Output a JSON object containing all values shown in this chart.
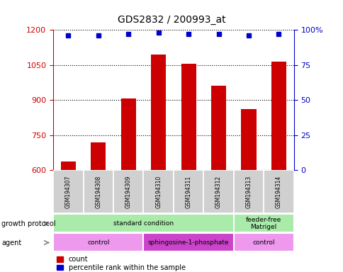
{
  "title": "GDS2832 / 200993_at",
  "samples": [
    "GSM194307",
    "GSM194308",
    "GSM194309",
    "GSM194310",
    "GSM194311",
    "GSM194312",
    "GSM194313",
    "GSM194314"
  ],
  "counts": [
    635,
    718,
    905,
    1095,
    1055,
    960,
    860,
    1065
  ],
  "percentile_ranks": [
    96,
    96,
    97,
    98,
    97,
    97,
    96,
    97
  ],
  "ylim_left": [
    600,
    1200
  ],
  "ylim_right": [
    0,
    100
  ],
  "yticks_left": [
    600,
    750,
    900,
    1050,
    1200
  ],
  "yticks_right": [
    0,
    25,
    50,
    75,
    100
  ],
  "growth_protocol": [
    {
      "label": "standard condition",
      "start": 0,
      "end": 6,
      "color": "#aaeaaa"
    },
    {
      "label": "feeder-free\nMatrigel",
      "start": 6,
      "end": 8,
      "color": "#aaeaaa"
    }
  ],
  "agent": [
    {
      "label": "control",
      "start": 0,
      "end": 3,
      "color": "#ee99ee"
    },
    {
      "label": "sphingosine-1-phosphate",
      "start": 3,
      "end": 6,
      "color": "#cc44cc"
    },
    {
      "label": "control",
      "start": 6,
      "end": 8,
      "color": "#ee99ee"
    }
  ],
  "background_color": "#ffffff",
  "tick_color_left": "#cc0000",
  "tick_color_right": "#0000cc",
  "bar_color": "#cc0000",
  "dot_color": "#0000cc",
  "bar_width": 0.5,
  "sample_box_color": "#d0d0d0",
  "label_row1": "growth protocol",
  "label_row2": "agent",
  "legend_count": "count",
  "legend_pct": "percentile rank within the sample"
}
